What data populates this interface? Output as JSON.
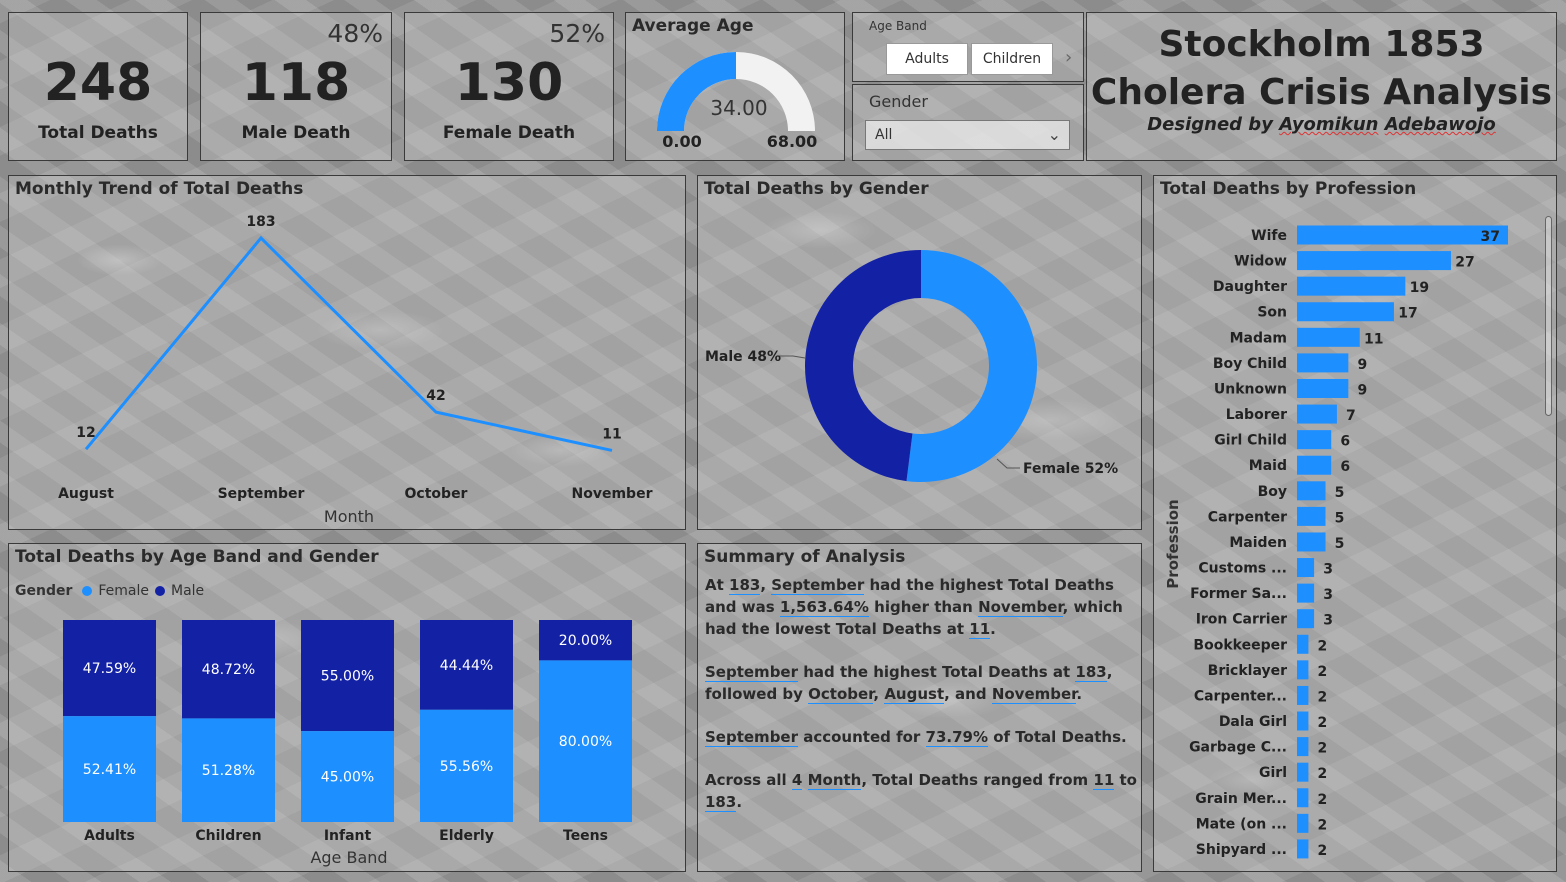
{
  "colors": {
    "female": "#1e8fff",
    "male": "#1321a5",
    "gauge_track": "#f2f2f2"
  },
  "kpis": {
    "total": {
      "value": "248",
      "label": "Total Deaths"
    },
    "male": {
      "value": "118",
      "label": "Male Death",
      "pct": "48%"
    },
    "female": {
      "value": "130",
      "label": "Female Death",
      "pct": "52%"
    }
  },
  "gauge": {
    "title": "Average Age",
    "value": 34.0,
    "value_label": "34.00",
    "min_label": "0.00",
    "max_label": "68.00",
    "min": 0,
    "max": 68
  },
  "age_band_slicer": {
    "title": "Age Band",
    "options": [
      "Adults",
      "Children"
    ]
  },
  "gender_slicer": {
    "title": "Gender",
    "value": "All"
  },
  "title_block": {
    "line1": "Stockholm 1853",
    "line2": "Cholera Crisis Analysis",
    "designer_prefix": "Designed by ",
    "designer_first": "Ayomikun",
    "designer_last": "Adebawojo"
  },
  "summary": {
    "title": "Summary of Analysis",
    "p1": [
      "At ",
      "183",
      ", ",
      "September",
      " had the highest Total Deaths and was ",
      "1,563.64%",
      " higher than ",
      "November",
      ", which had the lowest Total Deaths at ",
      "11",
      "."
    ],
    "p2": [
      "",
      "September",
      " had the highest Total Deaths at ",
      "183",
      ", followed by ",
      "October",
      ", ",
      "August",
      ", and ",
      "November",
      "."
    ],
    "p3": [
      "",
      "September",
      " accounted for ",
      "73.79%",
      " of Total Deaths."
    ],
    "p4": [
      "Across all ",
      "4",
      " ",
      "Month",
      ", Total Deaths ranged from ",
      "11",
      " to ",
      "183",
      "."
    ]
  },
  "chart_data": [
    {
      "id": "monthly_trend",
      "type": "line",
      "title": "Monthly Trend of Total Deaths",
      "xlabel": "Month",
      "ylabel": "",
      "categories": [
        "August",
        "September",
        "October",
        "November"
      ],
      "values": [
        12,
        183,
        42,
        11
      ],
      "data_labels": [
        "12",
        "183",
        "42",
        "11"
      ],
      "ylim": [
        0,
        183
      ],
      "grid": false
    },
    {
      "id": "gender_donut",
      "type": "pie",
      "title": "Total Deaths by Gender",
      "categories": [
        "Female",
        "Male"
      ],
      "values": [
        52,
        48
      ],
      "slice_labels": [
        "Female 52%",
        "Male 48%"
      ]
    },
    {
      "id": "age_band_gender",
      "type": "bar",
      "stacked": "100%",
      "title": "Total Deaths by Age Band and Gender",
      "xlabel": "Age Band",
      "legend_title": "Gender",
      "legend_position": "top-left",
      "categories": [
        "Adults",
        "Children",
        "Infant",
        "Elderly",
        "Teens"
      ],
      "series": [
        {
          "name": "Female",
          "values": [
            52.41,
            51.28,
            45.0,
            55.56,
            80.0
          ],
          "labels": [
            "52.41%",
            "51.28%",
            "45.00%",
            "55.56%",
            "80.00%"
          ]
        },
        {
          "name": "Male",
          "values": [
            47.59,
            48.72,
            55.0,
            44.44,
            20.0
          ],
          "labels": [
            "47.59%",
            "48.72%",
            "55.00%",
            "44.44%",
            "20.00%"
          ]
        }
      ]
    },
    {
      "id": "profession",
      "type": "bar",
      "orientation": "horizontal",
      "title": "Total Deaths by Profession",
      "ylabel": "Profession",
      "categories": [
        "Wife",
        "Widow",
        "Daughter",
        "Son",
        "Madam",
        "Boy Child",
        "Unknown",
        "Laborer",
        "Girl Child",
        "Maid",
        "Boy",
        "Carpenter",
        "Maiden",
        "Customs ...",
        "Former Sa...",
        "Iron Carrier",
        "Bookkeeper",
        "Bricklayer",
        "Carpenter...",
        "Dala Girl",
        "Garbage C...",
        "Girl",
        "Grain Mer...",
        "Mate (on ...",
        "Shipyard ..."
      ],
      "values": [
        37,
        27,
        19,
        17,
        11,
        9,
        9,
        7,
        6,
        6,
        5,
        5,
        5,
        3,
        3,
        3,
        2,
        2,
        2,
        2,
        2,
        2,
        2,
        2,
        2
      ],
      "xlim": [
        0,
        37
      ]
    }
  ]
}
